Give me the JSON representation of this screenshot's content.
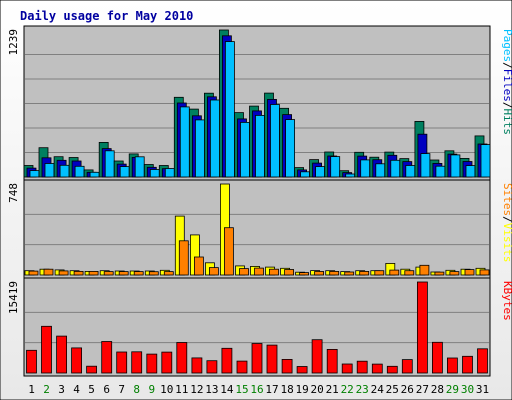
{
  "chart_data": {
    "type": "bar",
    "title": "Daily usage for May 2010",
    "categories": [
      "1",
      "2",
      "3",
      "4",
      "5",
      "6",
      "7",
      "8",
      "9",
      "10",
      "11",
      "12",
      "13",
      "14",
      "15",
      "16",
      "17",
      "18",
      "19",
      "20",
      "21",
      "22",
      "23",
      "24",
      "25",
      "26",
      "27",
      "28",
      "29",
      "30",
      "31"
    ],
    "weekend_days": [
      "2",
      "8",
      "9",
      "15",
      "16",
      "22",
      "23",
      "29",
      "30"
    ],
    "panels": [
      {
        "name": "top",
        "max_label": "1239",
        "ymax": 1239,
        "right_label": [
          {
            "text": "Pages",
            "color": "#00c0ff"
          },
          {
            "text": "/",
            "color": "#000000"
          },
          {
            "text": "Files",
            "color": "#0000c0"
          },
          {
            "text": "/",
            "color": "#000000"
          },
          {
            "text": "Hits",
            "color": "#008060"
          }
        ],
        "series": [
          {
            "name": "Hits",
            "color": "#008060",
            "values": [
              97,
              247,
              171,
              164,
              60,
              292,
              135,
              195,
              105,
              97,
              672,
              572,
              706,
              1239,
              543,
              598,
              707,
              579,
              79,
              147,
              211,
              53,
              208,
              167,
              210,
              155,
              469,
              143,
              221,
              157,
              346
            ]
          },
          {
            "name": "Files",
            "color": "#0000c0",
            "values": [
              75,
              162,
              141,
              135,
              40,
              239,
              109,
              165,
              82,
              70,
              624,
              516,
              676,
              1190,
              490,
              557,
              654,
              526,
              60,
              117,
              177,
              37,
              176,
              146,
              183,
              130,
              361,
              115,
              193,
              131,
              278
            ]
          },
          {
            "name": "Pages",
            "color": "#00c0ff",
            "values": [
              54,
              114,
              99,
              90,
              40,
              221,
              88,
              170,
              63,
              72,
              591,
              481,
              649,
              1141,
              460,
              519,
              611,
              484,
              44,
              88,
              172,
              25,
              144,
              111,
              141,
              97,
              197,
              91,
              186,
              96,
              273
            ]
          }
        ]
      },
      {
        "name": "middle",
        "max_label": "748",
        "ymax": 748,
        "right_label": [
          {
            "text": "Sites",
            "color": "#ff8000"
          },
          {
            "text": "/",
            "color": "#000000"
          },
          {
            "text": "Visits",
            "color": "#ffff00"
          }
        ],
        "series": [
          {
            "name": "Visits",
            "color": "#ffff00",
            "values": [
              35,
              48,
              42,
              35,
              30,
              35,
              33,
              33,
              33,
              39,
              484,
              330,
              100,
              748,
              75,
              71,
              65,
              55,
              23,
              36,
              35,
              28,
              35,
              35,
              95,
              48,
              65,
              25,
              39,
              48,
              55
            ]
          },
          {
            "name": "Sites",
            "color": "#ff8000",
            "values": [
              32,
              48,
              34,
              30,
              30,
              28,
              28,
              28,
              27,
              28,
              281,
              148,
              61,
              389,
              53,
              57,
              48,
              45,
              20,
              29,
              30,
              25,
              30,
              35,
              40,
              35,
              80,
              24,
              28,
              44,
              42
            ]
          }
        ]
      },
      {
        "name": "bottom",
        "max_label": "15419",
        "ymax": 15419,
        "right_label": [
          {
            "text": "KBytes",
            "color": "#ff0000"
          }
        ],
        "series": [
          {
            "name": "KBytes",
            "color": "#ff0000",
            "values": [
              3844,
              7919,
              6256,
              4255,
              1144,
              5339,
              3561,
              3589,
              3208,
              3538,
              5171,
              2556,
              2083,
              4180,
              2021,
              5004,
              4719,
              2304,
              1096,
              5648,
              4005,
              1518,
              2004,
              1501,
              1130,
              2272,
              15419,
              5195,
              2547,
              2824,
              4094
            ]
          }
        ]
      }
    ],
    "grid": true
  }
}
